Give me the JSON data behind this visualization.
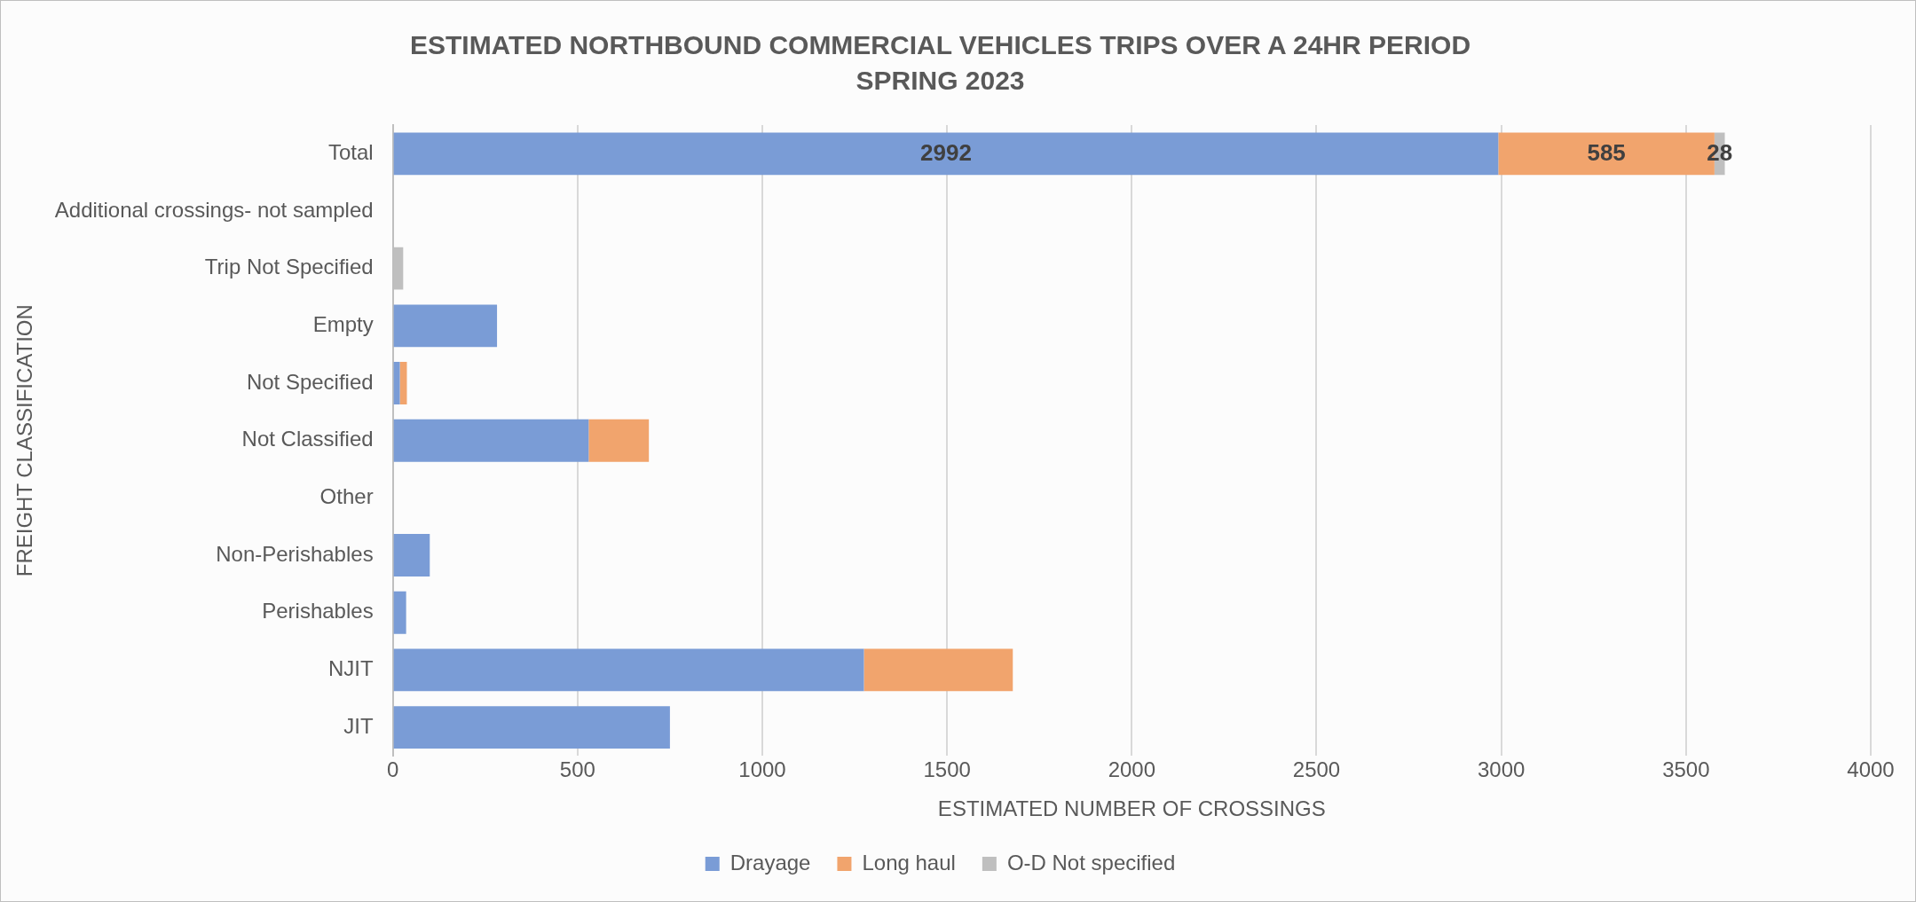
{
  "chart_data": {
    "type": "bar",
    "orientation": "horizontal",
    "stacked": true,
    "title": "ESTIMATED NORTHBOUND COMMERCIAL VEHICLES TRIPS OVER A 24HR PERIOD",
    "subtitle": "SPRING 2023",
    "xlabel": "ESTIMATED NUMBER OF CROSSINGS",
    "ylabel": "FREIGHT CLASSIFICATION",
    "categories": [
      "Total",
      "Additional crossings- not sampled",
      "Trip Not Specified",
      "Empty",
      "Not Specified",
      "Not Classified",
      "Other",
      "Non-Perishables",
      "Perishables",
      "NJIT",
      "JIT"
    ],
    "series": [
      {
        "name": "Drayage",
        "color": "#7a9cd6",
        "values": [
          2992,
          null,
          null,
          282,
          19,
          530,
          null,
          100,
          36,
          1275,
          750
        ],
        "value_labels": [
          "2992",
          null,
          null,
          null,
          null,
          null,
          null,
          null,
          null,
          null,
          null
        ]
      },
      {
        "name": "Long haul",
        "color": "#f1a46d",
        "values": [
          585,
          null,
          null,
          null,
          19,
          163,
          null,
          null,
          null,
          403,
          null
        ],
        "value_labels": [
          "585",
          null,
          null,
          null,
          null,
          null,
          null,
          null,
          null,
          null,
          null
        ]
      },
      {
        "name": "O-D Not specified",
        "color": "#bfbfbf",
        "values": [
          28,
          null,
          28,
          null,
          null,
          null,
          null,
          null,
          null,
          null,
          null
        ],
        "value_labels": [
          "28",
          null,
          null,
          null,
          null,
          null,
          null,
          null,
          null,
          null,
          null
        ]
      }
    ],
    "xlim": [
      0,
      4000
    ],
    "xticks": [
      0,
      500,
      1000,
      1500,
      2000,
      2500,
      3000,
      3500,
      4000
    ],
    "grid": "x",
    "legend": "bottom"
  }
}
